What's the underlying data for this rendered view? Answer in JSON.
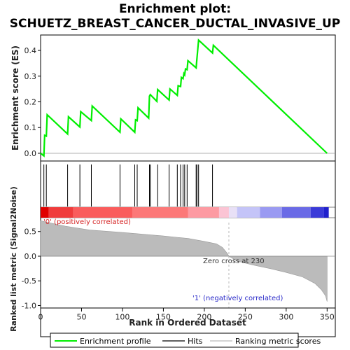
{
  "title_line1": "Enrichment plot:",
  "title_line2": "SCHUETZ_BREAST_CANCER_DUCTAL_INVASIVE_UP",
  "chart_data": {
    "type": "line",
    "xlabel": "Rank in Ordered Dataset",
    "x_ticks": [
      0,
      50,
      100,
      150,
      200,
      250,
      300,
      350
    ],
    "xlim": [
      0,
      360
    ],
    "es_panel": {
      "ylabel": "Enrichment score (ES)",
      "ylim": [
        -0.03,
        0.46
      ],
      "y_ticks": [
        0.0,
        0.1,
        0.2,
        0.3,
        0.4
      ],
      "y_tick_labels": [
        "0.0",
        "0.1",
        "0.2",
        "0.3",
        "0.4"
      ],
      "series_name": "Enrichment profile",
      "line_color": "#00ee00",
      "points": [
        [
          0,
          0.0
        ],
        [
          4,
          -0.01
        ],
        [
          5,
          0.07
        ],
        [
          7,
          0.067
        ],
        [
          8,
          0.15
        ],
        [
          33,
          0.075
        ],
        [
          34,
          0.142
        ],
        [
          48,
          0.102
        ],
        [
          49,
          0.162
        ],
        [
          62,
          0.127
        ],
        [
          63,
          0.184
        ],
        [
          97,
          0.082
        ],
        [
          98,
          0.134
        ],
        [
          115,
          0.082
        ],
        [
          116,
          0.13
        ],
        [
          118,
          0.127
        ],
        [
          119,
          0.177
        ],
        [
          132,
          0.137
        ],
        [
          133,
          0.222
        ],
        [
          134,
          0.228
        ],
        [
          142,
          0.202
        ],
        [
          143,
          0.248
        ],
        [
          157,
          0.207
        ],
        [
          158,
          0.25
        ],
        [
          167,
          0.225
        ],
        [
          168,
          0.263
        ],
        [
          171,
          0.26
        ],
        [
          172,
          0.295
        ],
        [
          174,
          0.29
        ],
        [
          175,
          0.31
        ],
        [
          176,
          0.305
        ],
        [
          177,
          0.328
        ],
        [
          179,
          0.325
        ],
        [
          180,
          0.36
        ],
        [
          190,
          0.332
        ],
        [
          191,
          0.37
        ],
        [
          193,
          0.44
        ],
        [
          210,
          0.39
        ],
        [
          211,
          0.42
        ],
        [
          350,
          0.0
        ]
      ]
    },
    "hits": [
      4,
      7,
      33,
      48,
      62,
      97,
      115,
      118,
      133,
      134,
      143,
      157,
      167,
      171,
      174,
      176,
      179,
      190,
      191,
      193,
      210
    ],
    "rank_bar": {
      "segments": [
        {
          "from": 0,
          "to": 10,
          "color": "#e00000"
        },
        {
          "from": 10,
          "to": 40,
          "color": "#f03c3c"
        },
        {
          "from": 40,
          "to": 112,
          "color": "#fa5c5c"
        },
        {
          "from": 112,
          "to": 180,
          "color": "#fc7878"
        },
        {
          "from": 180,
          "to": 218,
          "color": "#fd9aa2"
        },
        {
          "from": 218,
          "to": 230,
          "color": "#fbc4d4"
        },
        {
          "from": 230,
          "to": 240,
          "color": "#e8e0f6"
        },
        {
          "from": 240,
          "to": 268,
          "color": "#c4c4f8"
        },
        {
          "from": 268,
          "to": 295,
          "color": "#9a9af2"
        },
        {
          "from": 295,
          "to": 330,
          "color": "#6a6ae6"
        },
        {
          "from": 330,
          "to": 346,
          "color": "#3a3ad8"
        },
        {
          "from": 346,
          "to": 352,
          "color": "#2020cc"
        }
      ]
    },
    "metric_panel": {
      "ylabel": "Ranked list metric (Signal2Noise)",
      "ylim": [
        -1.05,
        0.78
      ],
      "y_ticks": [
        0.5,
        0.0,
        -0.5,
        -1.0
      ],
      "y_tick_labels": [
        "0.5",
        "0.0",
        "-0.5",
        "-1.0"
      ],
      "fill_color": "#bbbbbb",
      "profile": [
        [
          0,
          0.72
        ],
        [
          10,
          0.68
        ],
        [
          30,
          0.61
        ],
        [
          60,
          0.53
        ],
        [
          100,
          0.48
        ],
        [
          150,
          0.41
        ],
        [
          180,
          0.36
        ],
        [
          200,
          0.3
        ],
        [
          215,
          0.25
        ],
        [
          222,
          0.18
        ],
        [
          228,
          0.06
        ],
        [
          230,
          0.0
        ],
        [
          240,
          -0.1
        ],
        [
          260,
          -0.18
        ],
        [
          280,
          -0.25
        ],
        [
          300,
          -0.33
        ],
        [
          320,
          -0.42
        ],
        [
          335,
          -0.55
        ],
        [
          343,
          -0.68
        ],
        [
          348,
          -0.8
        ],
        [
          350,
          -0.92
        ]
      ]
    },
    "annotations": {
      "positive": "'0' (positively correlated)",
      "zero_cross": "Zero cross at 230",
      "negative": "'1' (negatively correlated)",
      "zero_cross_rank": 230
    },
    "legend": [
      {
        "label": "Enrichment profile",
        "color": "#00ee00"
      },
      {
        "label": "Hits",
        "color": "#000000"
      },
      {
        "label": "Ranking metric scores",
        "color": "#bbbbbb"
      }
    ]
  }
}
